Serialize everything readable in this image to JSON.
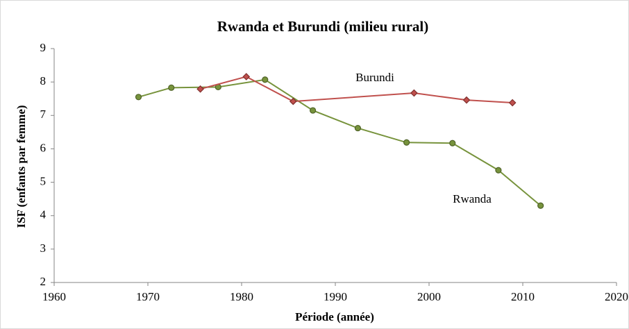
{
  "chart_data": {
    "type": "line",
    "title": "Rwanda et Burundi (milieu rural)",
    "x_label": "Période (année)",
    "y_label": "ISF (enfants par femme)",
    "xlim": [
      1960,
      2020
    ],
    "xticks": [
      1960,
      1970,
      1980,
      1990,
      2000,
      2010,
      2020
    ],
    "ylim": [
      2,
      9
    ],
    "yticks": [
      2,
      3,
      4,
      5,
      6,
      7,
      8,
      9
    ],
    "grid": false,
    "series": [
      {
        "name": "Rwanda",
        "color": "#77933c",
        "marker_color": "#4f6228",
        "marker": "circle",
        "x": [
          1969.0,
          1972.5,
          1977.5,
          1982.5,
          1987.6,
          1992.4,
          1997.6,
          2002.5,
          2007.4,
          2011.9
        ],
        "values": [
          7.55,
          7.83,
          7.85,
          8.07,
          7.15,
          6.62,
          6.19,
          6.17,
          5.36,
          4.3
        ]
      },
      {
        "name": "Burundi",
        "color": "#c0504d",
        "marker_color": "#7f2f2d",
        "marker": "diamond",
        "x": [
          1975.6,
          1980.5,
          1985.5,
          1998.4,
          2004.0,
          2008.9
        ],
        "values": [
          7.79,
          8.16,
          7.42,
          7.67,
          7.46,
          7.38
        ]
      }
    ]
  }
}
